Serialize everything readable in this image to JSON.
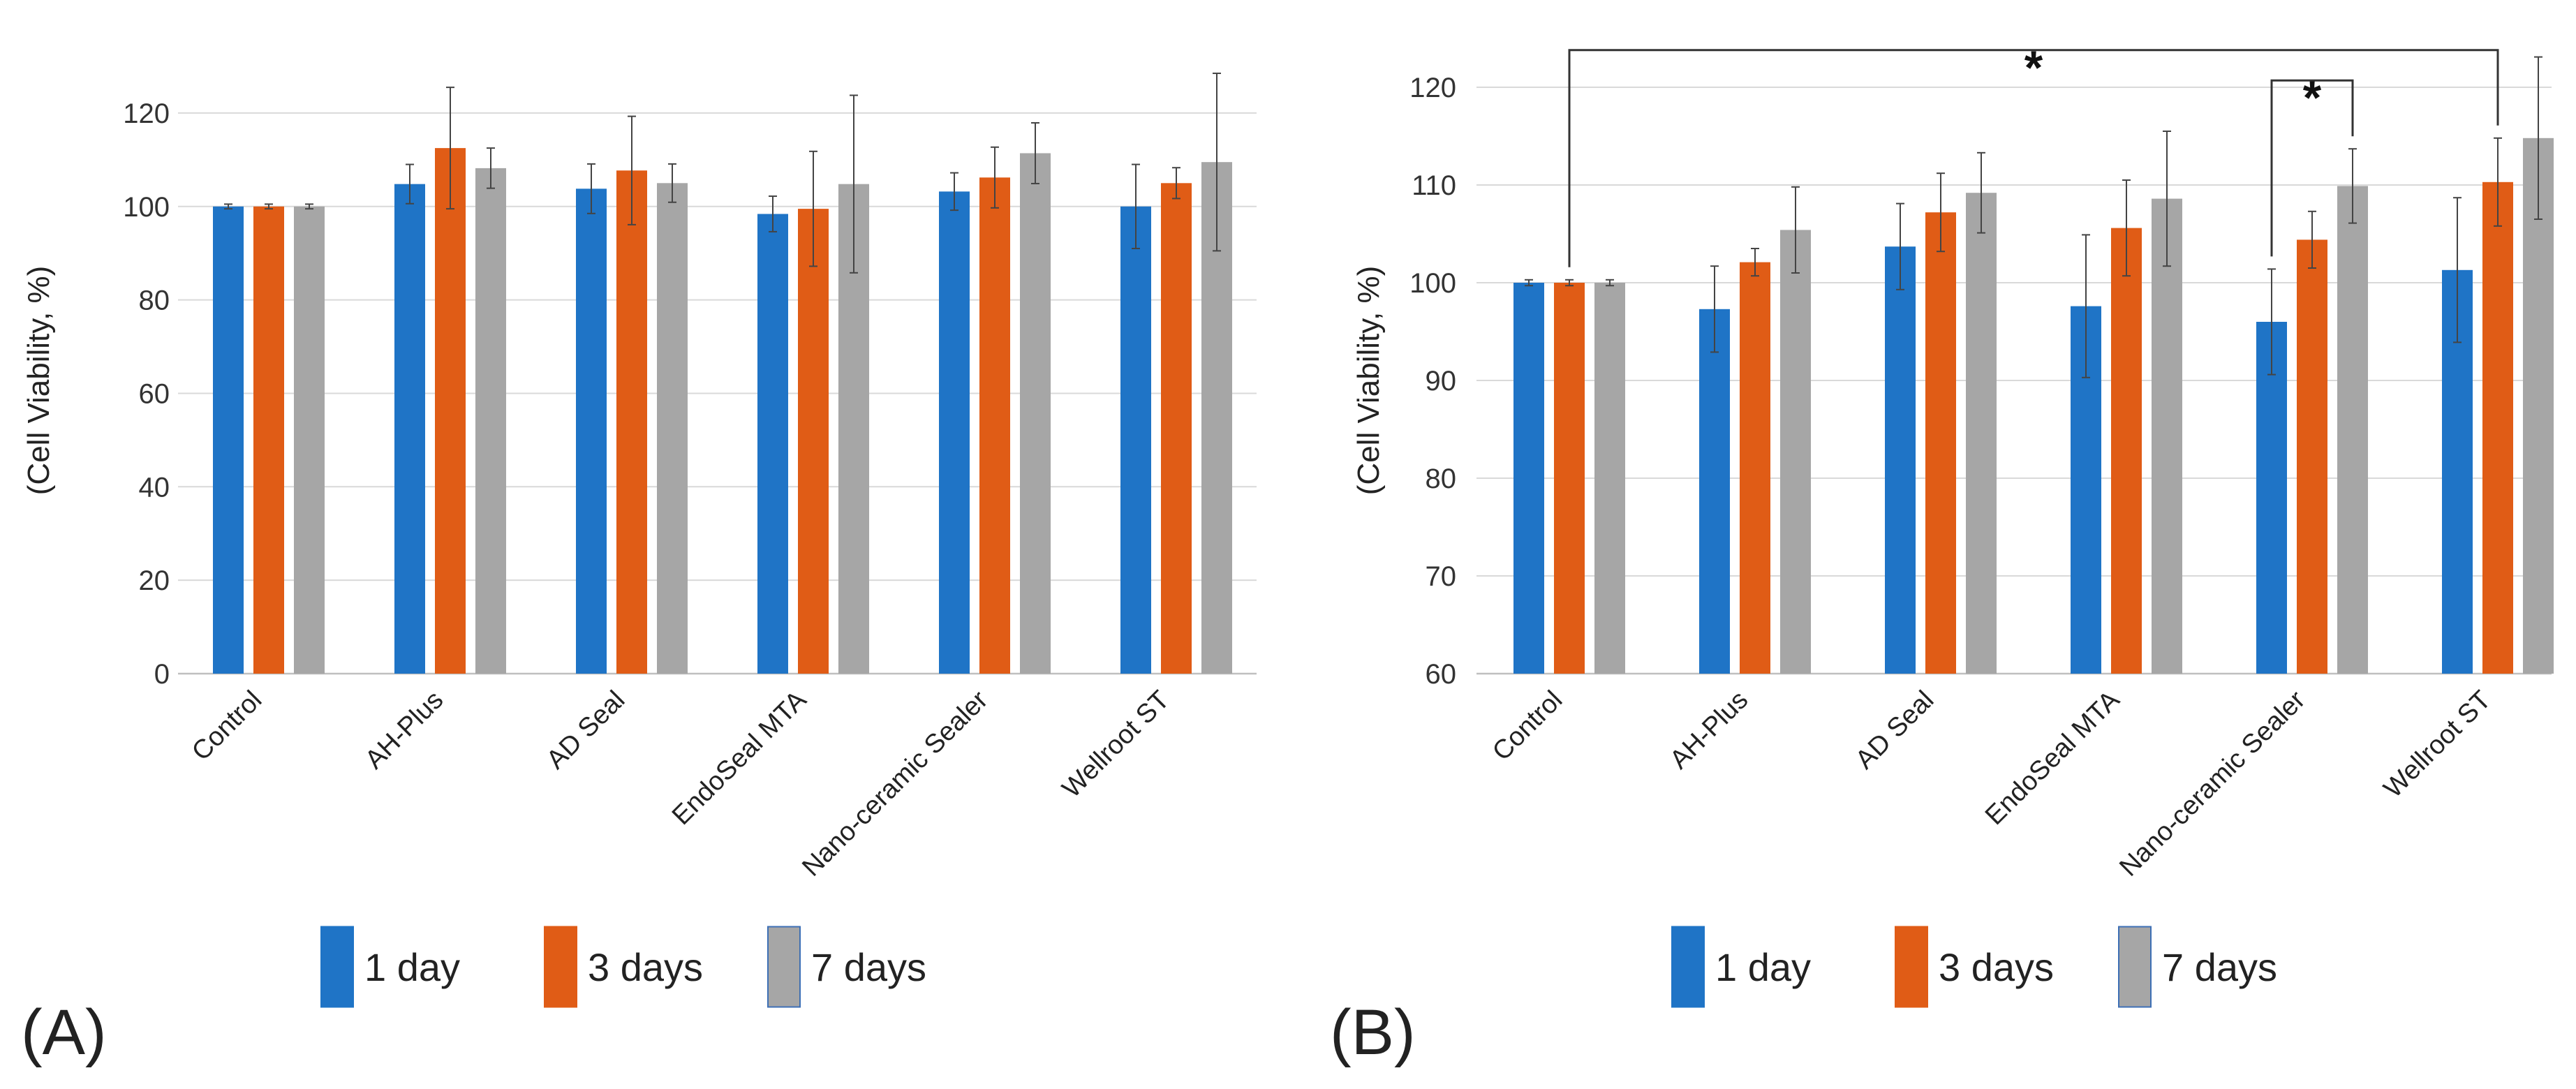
{
  "chart_data": [
    {
      "panel": "(A)",
      "type": "bar",
      "title": "",
      "xlabel": "",
      "ylabel": "(Cell Viability, %)",
      "ylim": [
        0,
        130
      ],
      "yticks": [
        0,
        20,
        40,
        60,
        80,
        100,
        120
      ],
      "grid": true,
      "legend_position": "bottom",
      "categories": [
        "Control",
        "AH-Plus",
        "AD Seal",
        "EndoSeal MTA",
        "Nano-ceramic Sealer",
        "Wellroot ST"
      ],
      "series": [
        {
          "name": "1 day",
          "color": "#1f74c6",
          "values": [
            100,
            104.8,
            103.8,
            98.4,
            103.2,
            100
          ],
          "errors": [
            0.5,
            4.2,
            5.3,
            3.8,
            4,
            9
          ]
        },
        {
          "name": "3 days",
          "color": "#e05c16",
          "values": [
            100,
            112.5,
            107.7,
            99.5,
            106.2,
            105
          ],
          "errors": [
            0.5,
            13,
            11.6,
            12.3,
            6.5,
            3.3
          ]
        },
        {
          "name": "7 days",
          "color": "#a6a6a6",
          "values": [
            100,
            108.2,
            105,
            104.8,
            111.4,
            109.5
          ],
          "errors": [
            0.5,
            4.3,
            4.1,
            19,
            6.5,
            19
          ]
        }
      ],
      "annotations": []
    },
    {
      "panel": "(B)",
      "type": "bar",
      "title": "",
      "xlabel": "",
      "ylabel": "(Cell Viability, %)",
      "ylim": [
        60,
        125
      ],
      "yticks": [
        60,
        70,
        80,
        90,
        100,
        110,
        120
      ],
      "grid": true,
      "legend_position": "bottom",
      "categories": [
        "Control",
        "AH-Plus",
        "AD Seal",
        "EndoSeal MTA",
        "Nano-ceramic Sealer",
        "Wellroot ST"
      ],
      "series": [
        {
          "name": "1 day",
          "color": "#1f74c6",
          "values": [
            100,
            97.3,
            103.7,
            97.6,
            96,
            101.3
          ],
          "errors": [
            0.3,
            4.4,
            4.4,
            7.3,
            5.4,
            7.4
          ]
        },
        {
          "name": "3 days",
          "color": "#e05c16",
          "values": [
            100,
            102.1,
            107.2,
            105.6,
            104.4,
            110.3
          ],
          "errors": [
            0.3,
            1.4,
            4,
            4.9,
            2.9,
            4.5
          ]
        },
        {
          "name": "7 days",
          "color": "#a6a6a6",
          "values": [
            100,
            105.4,
            109.2,
            108.6,
            109.9,
            114.8
          ],
          "errors": [
            0.3,
            4.4,
            4.1,
            6.9,
            3.8,
            8.3
          ]
        }
      ],
      "annotations": [
        {
          "text": "*",
          "from": {
            "category": 0,
            "series": 1
          },
          "to": {
            "category": 5,
            "series": 1
          },
          "level": 123.8
        },
        {
          "text": "*",
          "from": {
            "category": 4,
            "series": 0
          },
          "to": {
            "category": 4,
            "series": 2
          },
          "level": 120.7
        }
      ]
    }
  ]
}
